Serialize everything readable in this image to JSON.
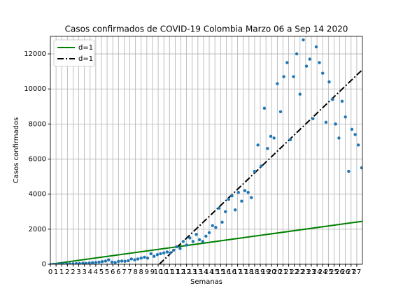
{
  "chart_data": {
    "type": "scatter",
    "title": "Casos confirmados de COVID-19 Colombia Marzo 06 a Sep 14 2020",
    "x_label": "Semanas",
    "y_label": "Casos confirmados",
    "xlim": [
      0,
      27.5
    ],
    "ylim": [
      0,
      13000
    ],
    "grid": true,
    "legend": "upper left",
    "yticks": [
      0,
      2000,
      4000,
      6000,
      8000,
      10000,
      12000
    ],
    "xticks": [
      0,
      {
        "value": 0.5,
        "label": "1"
      },
      1,
      {
        "value": 1.5,
        "label": "2"
      },
      2,
      {
        "value": 2.5,
        "label": "3"
      },
      3,
      {
        "value": 3.5,
        "label": "4"
      },
      4,
      {
        "value": 4.5,
        "label": "5"
      },
      5,
      {
        "value": 5.5,
        "label": "6"
      },
      6,
      {
        "value": 6.5,
        "label": "7"
      },
      7,
      {
        "value": 7.5,
        "label": "8"
      },
      8,
      {
        "value": 8.5,
        "label": "9"
      },
      9,
      {
        "value": 9.5,
        "label": "10"
      },
      10,
      {
        "value": 10.5,
        "label": "11"
      },
      11,
      {
        "value": 11.5,
        "label": "12"
      },
      12,
      {
        "value": 12.5,
        "label": "13"
      },
      13,
      {
        "value": 13.5,
        "label": "14"
      },
      14,
      {
        "value": 14.5,
        "label": "15"
      },
      15,
      {
        "value": 15.5,
        "label": "16"
      },
      16,
      {
        "value": 16.5,
        "label": "17"
      },
      17,
      {
        "value": 17.5,
        "label": "18"
      },
      18,
      {
        "value": 18.5,
        "label": "19"
      },
      19,
      {
        "value": 19.5,
        "label": "20"
      },
      20,
      {
        "value": 20.5,
        "label": "21"
      },
      21,
      {
        "value": 21.5,
        "label": "22"
      },
      22,
      {
        "value": 22.5,
        "label": "23"
      },
      23,
      {
        "value": 23.5,
        "label": "24"
      },
      24,
      {
        "value": 24.5,
        "label": "25"
      },
      25,
      {
        "value": 25.5,
        "label": "26"
      },
      26,
      {
        "value": 26.5,
        "label": "27"
      },
      27
    ],
    "scatter": {
      "color": "#1f77b4",
      "x": [
        0,
        0.29,
        0.57,
        0.86,
        1.14,
        1.43,
        1.71,
        2,
        2.29,
        2.57,
        2.86,
        3.14,
        3.43,
        3.71,
        4,
        4.29,
        4.57,
        4.86,
        5.14,
        5.43,
        5.71,
        6,
        6.29,
        6.57,
        6.86,
        7.14,
        7.43,
        7.71,
        8,
        8.29,
        8.57,
        8.86,
        9.14,
        9.43,
        9.71,
        10,
        10.29,
        10.57,
        10.86,
        11.14,
        11.43,
        11.71,
        12,
        12.29,
        12.57,
        12.86,
        13.14,
        13.43,
        13.71,
        14,
        14.29,
        14.57,
        14.86,
        15.14,
        15.43,
        15.71,
        16,
        16.29,
        16.57,
        16.86,
        17.14,
        17.43,
        17.71,
        18,
        18.29,
        18.57,
        18.86,
        19.14,
        19.43,
        19.71,
        20,
        20.29,
        20.57,
        20.86,
        21.14,
        21.43,
        21.71,
        22,
        22.29,
        22.57,
        22.86,
        23.14,
        23.43,
        23.71,
        24,
        24.29,
        24.57,
        24.86,
        25.14,
        25.43,
        25.71,
        26,
        26.29,
        26.57,
        26.86,
        27.14,
        27.43
      ],
      "values": [
        1,
        3,
        5,
        10,
        15,
        20,
        25,
        30,
        35,
        40,
        60,
        50,
        70,
        90,
        100,
        120,
        150,
        180,
        250,
        120,
        100,
        160,
        180,
        170,
        200,
        300,
        250,
        300,
        350,
        400,
        350,
        600,
        450,
        550,
        600,
        650,
        700,
        650,
        800,
        1000,
        900,
        1300,
        1100,
        1500,
        1300,
        1700,
        1400,
        1300,
        1600,
        1800,
        2200,
        2100,
        3200,
        2400,
        3000,
        3700,
        3900,
        3100,
        4100,
        3600,
        4200,
        4100,
        3800,
        5300,
        6800,
        5600,
        8900,
        6600,
        7300,
        7200,
        10300,
        8700,
        10700,
        11500,
        7100,
        10700,
        12000,
        9700,
        12800,
        11300,
        11700,
        8300,
        12400,
        11500,
        10900,
        8100,
        10400,
        9400,
        8000,
        7200,
        9300,
        8400,
        5300,
        7700,
        7400,
        6800,
        5500
      ]
    },
    "lines": [
      {
        "name": "d=1",
        "color": "#008000",
        "style": "solid",
        "x": [
          0,
          27.5
        ],
        "values": [
          0,
          2450
        ]
      },
      {
        "name": "d=1",
        "color": "#000000",
        "style": "dashdot",
        "x": [
          9.6,
          27.5
        ],
        "values": [
          0,
          11100
        ]
      }
    ]
  }
}
